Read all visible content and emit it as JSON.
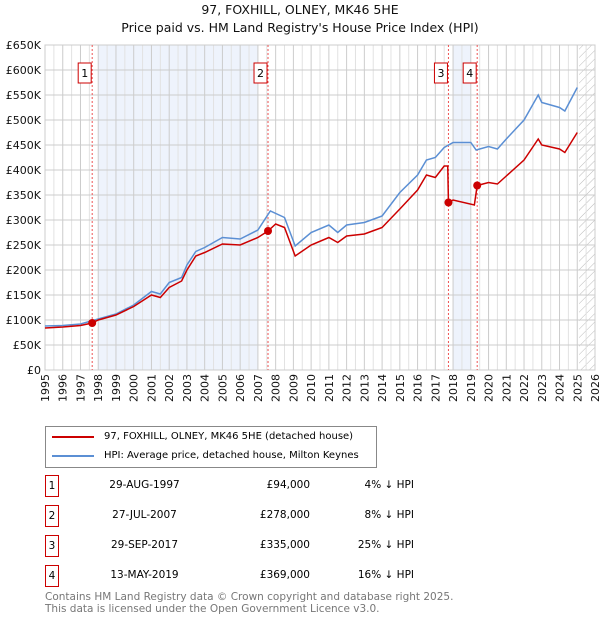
{
  "chart_data": {
    "type": "line",
    "title": "97, FOXHILL, OLNEY, MK46 5HE",
    "subtitle": "Price paid vs. HM Land Registry's House Price Index (HPI)",
    "xlim": [
      1995,
      2026
    ],
    "ylim": [
      0,
      650000
    ],
    "yticks": [
      0,
      50000,
      100000,
      150000,
      200000,
      250000,
      300000,
      350000,
      400000,
      450000,
      500000,
      550000,
      600000,
      650000
    ],
    "ytick_labels": [
      "£0",
      "£50K",
      "£100K",
      "£150K",
      "£200K",
      "£250K",
      "£300K",
      "£350K",
      "£400K",
      "£450K",
      "£500K",
      "£550K",
      "£600K",
      "£650K"
    ],
    "xticks": [
      "1995",
      "1996",
      "1997",
      "1998",
      "1999",
      "2000",
      "2001",
      "2002",
      "2003",
      "2004",
      "2005",
      "2006",
      "2007",
      "2008",
      "2009",
      "2010",
      "2011",
      "2012",
      "2013",
      "2014",
      "2015",
      "2016",
      "2017",
      "2018",
      "2019",
      "2020",
      "2021",
      "2022",
      "2023",
      "2024",
      "2025",
      "2026"
    ],
    "shaded_ranges": [
      [
        1998,
        2007
      ],
      [
        2018,
        2019
      ]
    ],
    "forecast_from": 2025.1,
    "series": [
      {
        "name": "97, FOXHILL, OLNEY, MK46 5HE (detached house)",
        "color": "#cc0000",
        "x": [
          1995,
          1996,
          1997,
          1997.66,
          1998,
          1999,
          2000,
          2001,
          2001.5,
          2002,
          2002.7,
          2003,
          2003.5,
          2004,
          2005,
          2006,
          2007,
          2007.57,
          2008,
          2008.5,
          2009.1,
          2010,
          2011,
          2011.5,
          2012,
          2013,
          2014,
          2015,
          2016,
          2016.5,
          2017,
          2017.5,
          2017.7,
          2017.74,
          2018,
          2019.2,
          2019.36,
          2020,
          2020.5,
          2021,
          2022,
          2022.8,
          2023,
          2024,
          2024.3,
          2025
        ],
        "y": [
          84000,
          86000,
          89000,
          94000,
          100000,
          110000,
          127000,
          150000,
          145000,
          165000,
          178000,
          200000,
          228000,
          235000,
          252000,
          250000,
          265000,
          278000,
          292000,
          285000,
          228000,
          250000,
          265000,
          255000,
          268000,
          272000,
          285000,
          322000,
          360000,
          390000,
          385000,
          408000,
          408000,
          335000,
          340000,
          330000,
          369000,
          375000,
          372000,
          388000,
          420000,
          462000,
          450000,
          442000,
          435000,
          475000
        ]
      },
      {
        "name": "HPI: Average price, detached house, Milton Keynes",
        "color": "#5b8fd4",
        "x": [
          1995,
          1996,
          1997,
          1998,
          1999,
          2000,
          2001,
          2001.5,
          2002,
          2002.7,
          2003,
          2003.5,
          2004,
          2005,
          2006,
          2007,
          2007.7,
          2008.5,
          2009.1,
          2010,
          2011,
          2011.5,
          2012,
          2013,
          2014,
          2015,
          2016,
          2016.5,
          2017,
          2017.5,
          2018,
          2019,
          2019.3,
          2020,
          2020.5,
          2021,
          2022,
          2022.8,
          2023,
          2024,
          2024.3,
          2025
        ],
        "y": [
          88000,
          89000,
          92000,
          102000,
          112000,
          130000,
          157000,
          152000,
          175000,
          185000,
          210000,
          237000,
          245000,
          265000,
          262000,
          280000,
          318000,
          305000,
          248000,
          275000,
          290000,
          275000,
          290000,
          295000,
          308000,
          355000,
          390000,
          420000,
          425000,
          445000,
          455000,
          455000,
          440000,
          447000,
          442000,
          462000,
          500000,
          550000,
          535000,
          525000,
          518000,
          565000
        ]
      }
    ],
    "sales": [
      {
        "label": "1",
        "date": "29-AUG-1997",
        "x": 1997.66,
        "price": "£94,000",
        "value": 94000,
        "hpi": "4% ↓ HPI"
      },
      {
        "label": "2",
        "date": "27-JUL-2007",
        "x": 2007.57,
        "price": "£278,000",
        "value": 278000,
        "hpi": "8% ↓ HPI"
      },
      {
        "label": "3",
        "date": "29-SEP-2017",
        "x": 2017.74,
        "price": "£335,000",
        "value": 335000,
        "hpi": "25% ↓ HPI"
      },
      {
        "label": "4",
        "date": "13-MAY-2019",
        "x": 2019.36,
        "price": "£369,000",
        "value": 369000,
        "hpi": "16% ↓ HPI"
      }
    ]
  },
  "footer": {
    "line1": "Contains HM Land Registry data © Crown copyright and database right 2025.",
    "line2": "This data is licensed under the Open Government Licence v3.0."
  }
}
